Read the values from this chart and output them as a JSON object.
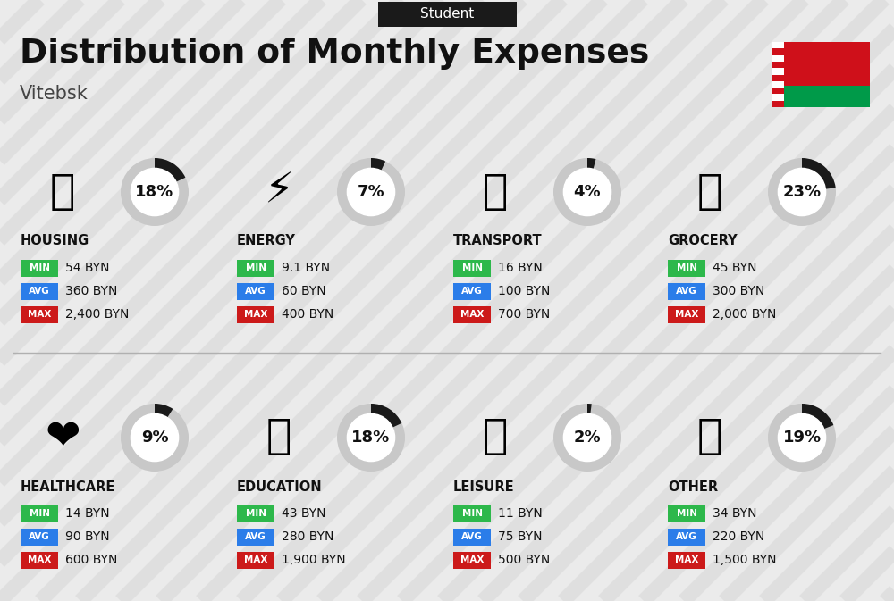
{
  "title": "Distribution of Monthly Expenses",
  "subtitle": "Student",
  "city": "Vitebsk",
  "bg_color": "#ebebeb",
  "categories": [
    {
      "name": "HOUSING",
      "pct": 18,
      "min_val": "54 BYN",
      "avg_val": "360 BYN",
      "max_val": "2,400 BYN",
      "icon": "🏗",
      "col": 0,
      "row": 0
    },
    {
      "name": "ENERGY",
      "pct": 7,
      "min_val": "9.1 BYN",
      "avg_val": "60 BYN",
      "max_val": "400 BYN",
      "icon": "⚡",
      "col": 1,
      "row": 0
    },
    {
      "name": "TRANSPORT",
      "pct": 4,
      "min_val": "16 BYN",
      "avg_val": "100 BYN",
      "max_val": "700 BYN",
      "icon": "🚌",
      "col": 2,
      "row": 0
    },
    {
      "name": "GROCERY",
      "pct": 23,
      "min_val": "45 BYN",
      "avg_val": "300 BYN",
      "max_val": "2,000 BYN",
      "icon": "🛒",
      "col": 3,
      "row": 0
    },
    {
      "name": "HEALTHCARE",
      "pct": 9,
      "min_val": "14 BYN",
      "avg_val": "90 BYN",
      "max_val": "600 BYN",
      "icon": "❤",
      "col": 0,
      "row": 1
    },
    {
      "name": "EDUCATION",
      "pct": 18,
      "min_val": "43 BYN",
      "avg_val": "280 BYN",
      "max_val": "1,900 BYN",
      "icon": "🎓",
      "col": 1,
      "row": 1
    },
    {
      "name": "LEISURE",
      "pct": 2,
      "min_val": "11 BYN",
      "avg_val": "75 BYN",
      "max_val": "500 BYN",
      "icon": "🛍",
      "col": 2,
      "row": 1
    },
    {
      "name": "OTHER",
      "pct": 19,
      "min_val": "34 BYN",
      "avg_val": "220 BYN",
      "max_val": "1,500 BYN",
      "icon": "👜",
      "col": 3,
      "row": 1
    }
  ],
  "min_color": "#2db84b",
  "avg_color": "#2b7de9",
  "max_color": "#cc1a1a",
  "label_text_color": "#ffffff",
  "donut_bg": "#c8c8c8",
  "donut_fg": "#1a1a1a",
  "title_color": "#111111",
  "city_color": "#444444",
  "subtitle_bg": "#1a1a1a",
  "subtitle_text": "#ffffff",
  "stripe_color": "#d5d5d5",
  "flag_red": "#cf101a",
  "flag_green": "#009a49"
}
